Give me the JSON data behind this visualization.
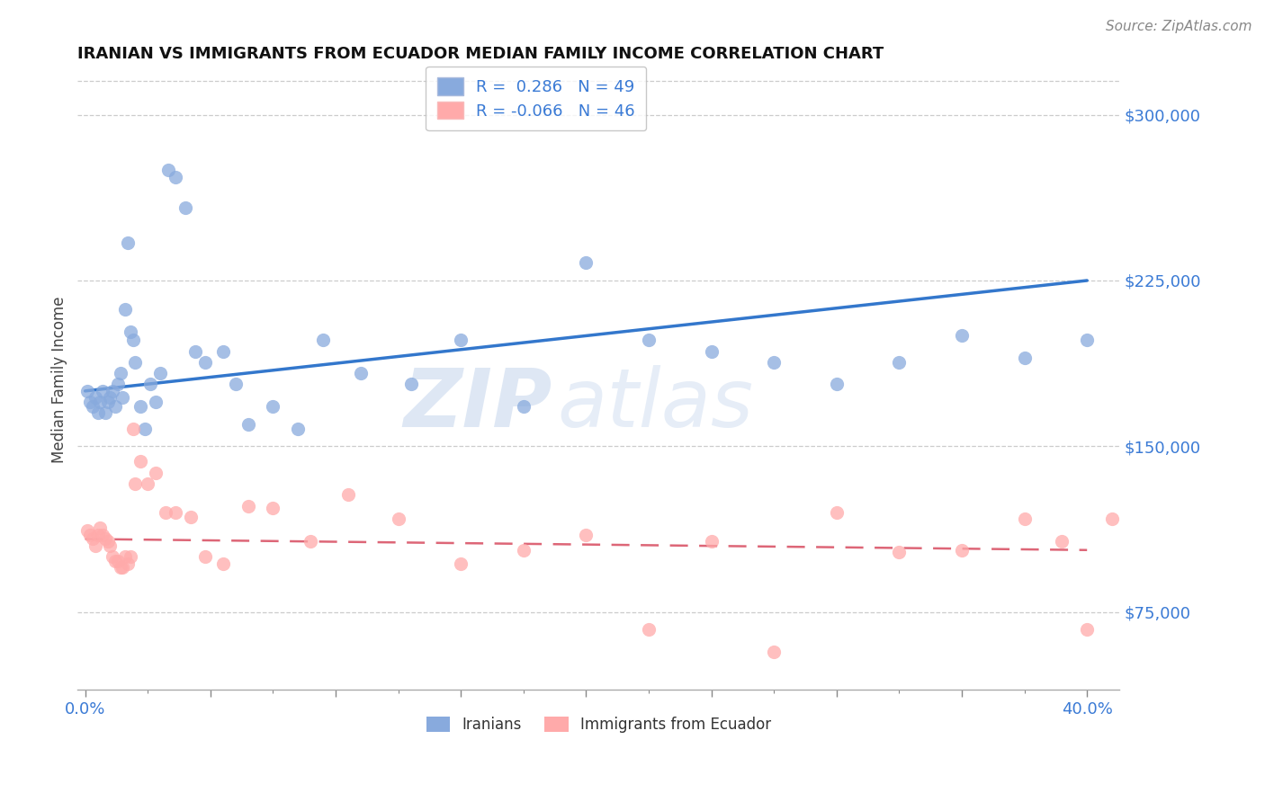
{
  "title": "IRANIAN VS IMMIGRANTS FROM ECUADOR MEDIAN FAMILY INCOME CORRELATION CHART",
  "source": "Source: ZipAtlas.com",
  "ylabel": "Median Family Income",
  "y_ticks": [
    75000,
    150000,
    225000,
    300000
  ],
  "y_tick_labels": [
    "$75,000",
    "$150,000",
    "$225,000",
    "$300,000"
  ],
  "x_ticks": [
    0.0,
    0.05,
    0.1,
    0.15,
    0.2,
    0.25,
    0.3,
    0.35,
    0.4
  ],
  "x_tick_labels_show": [
    "0.0%",
    "",
    "",
    "",
    "",
    "",
    "",
    "",
    "40.0%"
  ],
  "xlim": [
    -0.003,
    0.413
  ],
  "ylim": [
    40000,
    320000
  ],
  "iranian_R": 0.286,
  "iranian_N": 49,
  "ecuador_R": -0.066,
  "ecuador_N": 46,
  "iranian_color": "#88aadd",
  "ecuador_color": "#ffaaaa",
  "trend_iranian_color": "#3377cc",
  "trend_ecuador_color": "#dd6677",
  "background_color": "#ffffff",
  "watermark_zip": "ZIP",
  "watermark_atlas": "atlas",
  "legend_label_iranian": "Iranians",
  "legend_label_ecuador": "Immigrants from Ecuador",
  "iranians_x": [
    0.001,
    0.002,
    0.003,
    0.004,
    0.005,
    0.006,
    0.007,
    0.008,
    0.009,
    0.01,
    0.011,
    0.012,
    0.013,
    0.014,
    0.015,
    0.016,
    0.017,
    0.018,
    0.019,
    0.02,
    0.022,
    0.024,
    0.026,
    0.028,
    0.03,
    0.033,
    0.036,
    0.04,
    0.044,
    0.048,
    0.055,
    0.06,
    0.065,
    0.075,
    0.085,
    0.095,
    0.11,
    0.13,
    0.15,
    0.175,
    0.2,
    0.225,
    0.25,
    0.275,
    0.3,
    0.325,
    0.35,
    0.375,
    0.4
  ],
  "iranians_y": [
    175000,
    170000,
    168000,
    172000,
    165000,
    170000,
    175000,
    165000,
    170000,
    172000,
    175000,
    168000,
    178000,
    183000,
    172000,
    212000,
    242000,
    202000,
    198000,
    188000,
    168000,
    158000,
    178000,
    170000,
    183000,
    275000,
    272000,
    258000,
    193000,
    188000,
    193000,
    178000,
    160000,
    168000,
    158000,
    198000,
    183000,
    178000,
    198000,
    168000,
    233000,
    198000,
    193000,
    188000,
    178000,
    188000,
    200000,
    190000,
    198000
  ],
  "ecuador_x": [
    0.001,
    0.002,
    0.003,
    0.004,
    0.005,
    0.006,
    0.007,
    0.008,
    0.009,
    0.01,
    0.011,
    0.012,
    0.013,
    0.014,
    0.015,
    0.016,
    0.017,
    0.018,
    0.019,
    0.02,
    0.022,
    0.025,
    0.028,
    0.032,
    0.036,
    0.042,
    0.048,
    0.055,
    0.065,
    0.075,
    0.09,
    0.105,
    0.125,
    0.15,
    0.175,
    0.2,
    0.225,
    0.25,
    0.275,
    0.3,
    0.325,
    0.35,
    0.375,
    0.39,
    0.4,
    0.41
  ],
  "ecuador_y": [
    112000,
    110000,
    108000,
    105000,
    110000,
    113000,
    110000,
    108000,
    107000,
    105000,
    100000,
    98000,
    98000,
    95000,
    95000,
    100000,
    97000,
    100000,
    158000,
    133000,
    143000,
    133000,
    138000,
    120000,
    120000,
    118000,
    100000,
    97000,
    123000,
    122000,
    107000,
    128000,
    117000,
    97000,
    103000,
    110000,
    67000,
    107000,
    57000,
    120000,
    102000,
    103000,
    117000,
    107000,
    67000,
    117000
  ]
}
